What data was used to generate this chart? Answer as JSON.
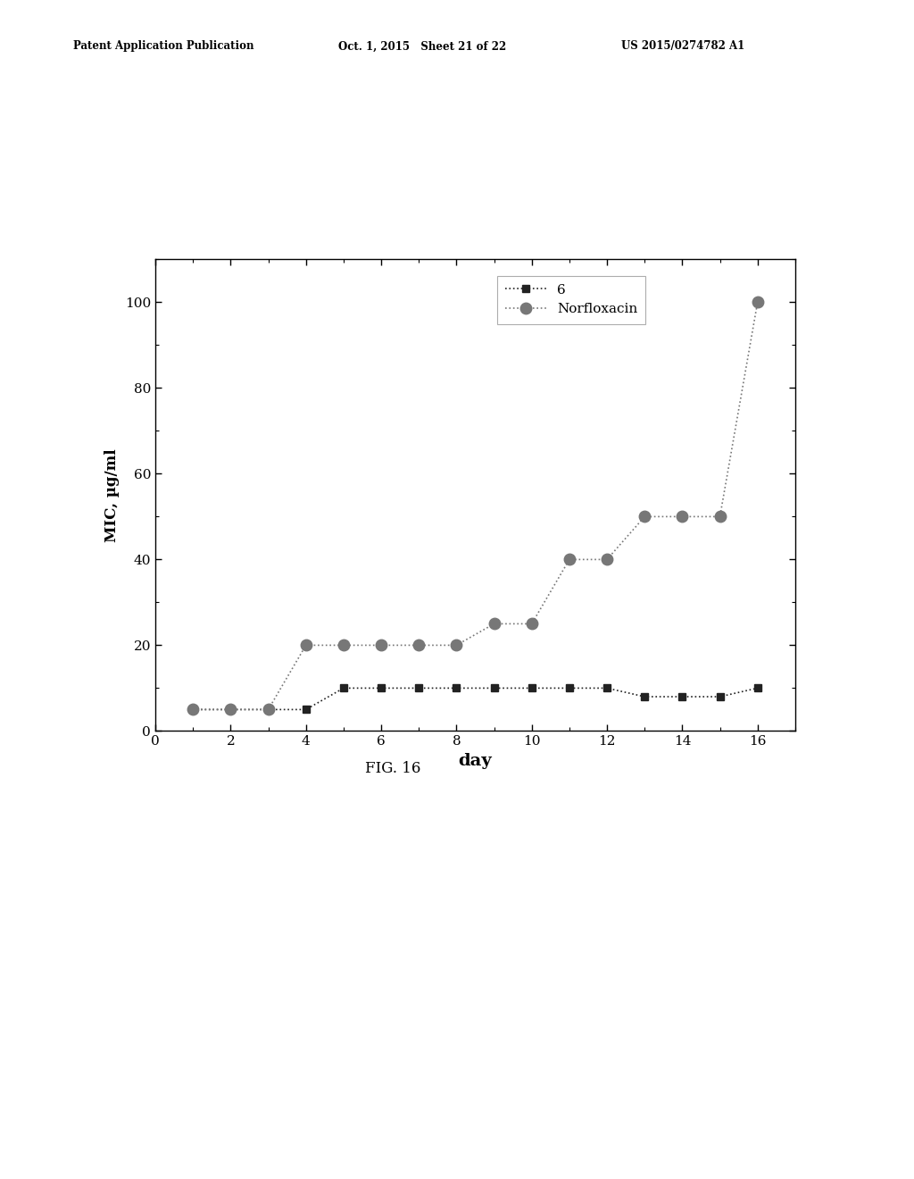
{
  "series_6_x": [
    1,
    2,
    3,
    4,
    5,
    6,
    7,
    8,
    9,
    10,
    11,
    12,
    13,
    14,
    15,
    16
  ],
  "series_6_y": [
    5,
    5,
    5,
    5,
    10,
    10,
    10,
    10,
    10,
    10,
    10,
    10,
    8,
    8,
    8,
    10
  ],
  "norfloxacin_x": [
    1,
    2,
    3,
    4,
    5,
    6,
    7,
    8,
    9,
    10,
    11,
    12,
    13,
    14,
    15,
    16
  ],
  "norfloxacin_y": [
    5,
    5,
    5,
    20,
    20,
    20,
    20,
    20,
    25,
    25,
    40,
    40,
    50,
    50,
    50,
    100
  ],
  "xlabel": "day",
  "ylabel": "MIC, µg/ml",
  "xlim": [
    0,
    17
  ],
  "ylim": [
    0,
    110
  ],
  "xticks": [
    0,
    2,
    4,
    6,
    8,
    10,
    12,
    14,
    16
  ],
  "yticks": [
    0,
    20,
    40,
    60,
    80,
    100
  ],
  "legend_labels": [
    "6",
    "Norfloxacin"
  ],
  "fig_caption": "FIG. 16",
  "header_left": "Patent Application Publication",
  "header_center": "Oct. 1, 2015   Sheet 21 of 22",
  "header_right": "US 2015/0274782 A1",
  "series_6_color": "#222222",
  "norfloxacin_color": "#777777",
  "background_color": "#ffffff"
}
